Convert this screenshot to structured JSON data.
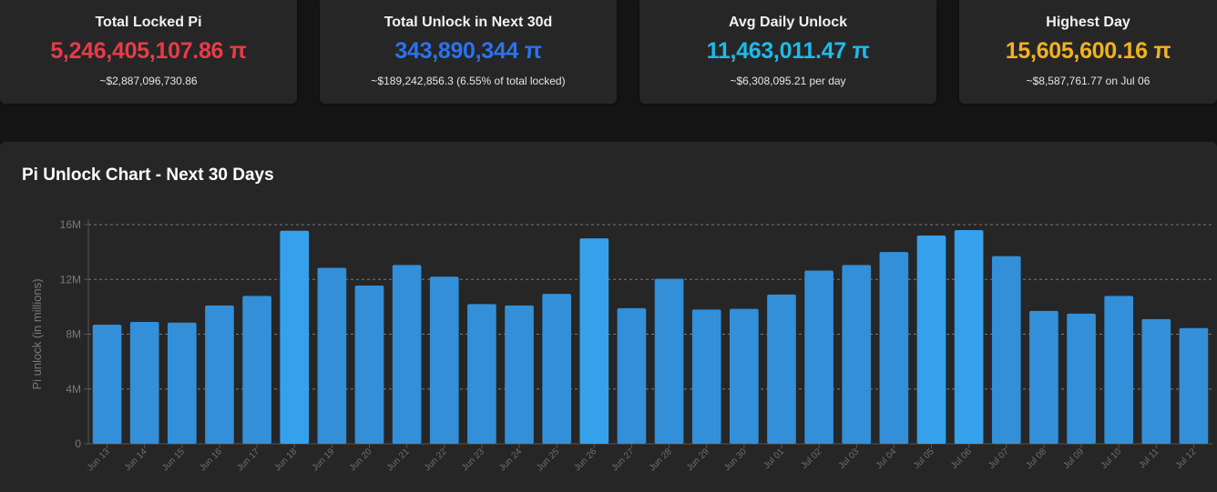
{
  "stats": [
    {
      "title": "Total Locked Pi",
      "value": "5,246,405,107.86 π",
      "sub": "~$2,887,096,730.86",
      "color": "#e83b4a"
    },
    {
      "title": "Total Unlock in Next 30d",
      "value": "343,890,344 π",
      "sub": "~$189,242,856.3 (6.55% of total locked)",
      "color": "#2c72ee"
    },
    {
      "title": "Avg Daily Unlock",
      "value": "11,463,011.47 π",
      "sub": "~$6,308,095.21 per day",
      "color": "#1dbbea"
    },
    {
      "title": "Highest Day",
      "value": "15,605,600.16 π",
      "sub": "~$8,587,761.77 on Jul 06",
      "color": "#f3b21c"
    }
  ],
  "chart": {
    "title": "Pi Unlock Chart - Next 30 Days"
  },
  "chart_data": {
    "type": "bar",
    "title": "Pi Unlock Chart - Next 30 Days",
    "xlabel": "",
    "ylabel": "Pi unlock (in millions)",
    "ylim": [
      0,
      16
    ],
    "yticks": [
      0,
      4,
      8,
      12,
      16
    ],
    "ytick_labels": [
      "0",
      "4M",
      "8M",
      "12M",
      "16M"
    ],
    "grid": "horizontal dashed",
    "categories": [
      "Jun 13",
      "Jun 14",
      "Jun 15",
      "Jun 16",
      "Jun 17",
      "Jun 18",
      "Jun 19",
      "Jun 20",
      "Jun 21",
      "Jun 22",
      "Jun 23",
      "Jun 24",
      "Jun 25",
      "Jun 26",
      "Jun 27",
      "Jun 28",
      "Jun 29",
      "Jun 30",
      "Jul 01",
      "Jul 02",
      "Jul 03",
      "Jul 04",
      "Jul 05",
      "Jul 06",
      "Jul 07",
      "Jul 08",
      "Jul 09",
      "Jul 10",
      "Jul 11",
      "Jul 12"
    ],
    "values": [
      8.7,
      8.9,
      8.85,
      10.1,
      10.8,
      15.55,
      12.85,
      11.55,
      13.05,
      12.2,
      10.2,
      10.1,
      10.95,
      15.0,
      9.9,
      12.05,
      9.8,
      9.85,
      10.9,
      12.65,
      13.05,
      14.0,
      15.2,
      15.6,
      13.7,
      9.7,
      9.5,
      10.8,
      9.1,
      8.45
    ],
    "colors": {
      "bar": "#338fd8",
      "bar_high": "#35a1ec",
      "grid": "#7a7a7a",
      "axis": "#555555"
    }
  }
}
